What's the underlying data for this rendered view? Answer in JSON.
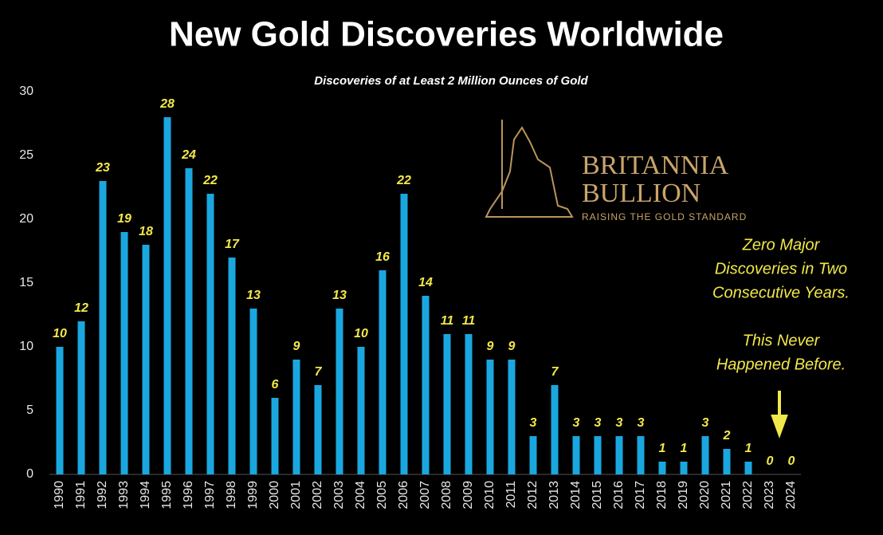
{
  "chart_data": {
    "type": "bar",
    "title": "New Gold Discoveries Worldwide",
    "subtitle": "Discoveries of at Least 2 Million Ounces of Gold",
    "categories": [
      "1990",
      "1991",
      "1992",
      "1993",
      "1994",
      "1995",
      "1996",
      "1997",
      "1998",
      "1999",
      "2000",
      "2001",
      "2002",
      "2003",
      "2004",
      "2005",
      "2006",
      "2007",
      "2008",
      "2009",
      "2010",
      "2011",
      "2012",
      "2013",
      "2014",
      "2015",
      "2016",
      "2017",
      "2018",
      "2019",
      "2020",
      "2021",
      "2022",
      "2023",
      "2024"
    ],
    "values": [
      10,
      12,
      23,
      19,
      18,
      28,
      24,
      22,
      17,
      13,
      6,
      9,
      7,
      13,
      10,
      16,
      22,
      14,
      11,
      11,
      9,
      9,
      3,
      7,
      3,
      3,
      3,
      3,
      1,
      1,
      3,
      2,
      1,
      0,
      0
    ],
    "color": "#1aa7e0",
    "ylim": [
      0,
      30
    ],
    "yticks": [
      0,
      5,
      10,
      15,
      20,
      25,
      30
    ],
    "grid": false,
    "annotations": [
      "Zero Major",
      "Discoveries in Two",
      "Consecutive Years.",
      "This Never",
      "Happened Before."
    ]
  },
  "logo": {
    "line1": "BRITANNIA",
    "line2": "BULLION",
    "tagline": "RAISING THE GOLD STANDARD"
  }
}
